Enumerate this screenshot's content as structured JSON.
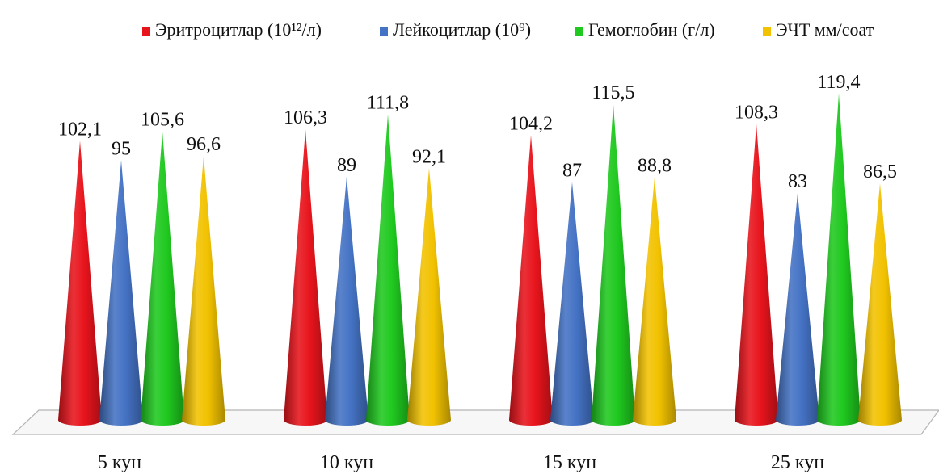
{
  "chart_data": {
    "type": "bar",
    "style": "3d-cone",
    "title": "",
    "xlabel": "",
    "ylabel": "",
    "ylim": [
      0,
      130
    ],
    "grid": false,
    "legend_placement": "top-right",
    "categories": [
      "5 кун",
      "10 кун",
      "15 кун",
      "25 кун"
    ],
    "series": [
      {
        "name": "Эритроцитлар (10¹²/л)",
        "color": "#e8141c",
        "values": [
          102.1,
          106.3,
          104.2,
          108.3
        ],
        "labels": [
          "102,1",
          "106,3",
          "104,2",
          "108,3"
        ]
      },
      {
        "name": "Лейкоцитлар (10⁹)",
        "color": "#4472c4",
        "values": [
          95,
          89,
          87,
          83
        ],
        "labels": [
          "95",
          "89",
          "87",
          "83"
        ]
      },
      {
        "name": "Гемоглобин (г/л)",
        "color": "#1fc91f",
        "values": [
          105.6,
          111.8,
          115.5,
          119.4
        ],
        "labels": [
          "105,6",
          "111,8",
          "115,5",
          "119,4"
        ]
      },
      {
        "name": "ЭЧТ мм/соат",
        "color": "#f2c200",
        "values": [
          96.6,
          92.1,
          88.8,
          86.5
        ],
        "labels": [
          "96,6",
          "92,1",
          "88,8",
          "86,5"
        ]
      }
    ]
  }
}
